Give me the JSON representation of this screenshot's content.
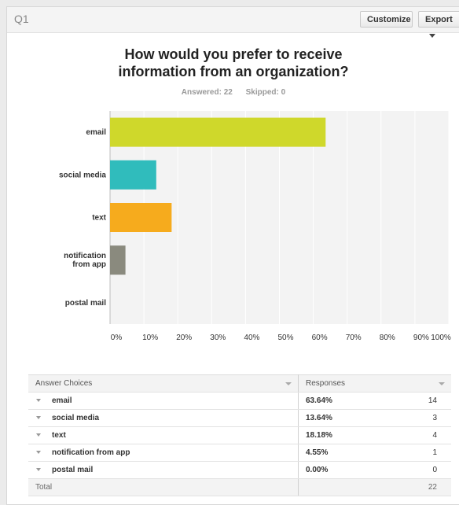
{
  "question": {
    "number": "Q1",
    "title_line1": "How would you prefer to receive",
    "title_line2": "information from an organization?",
    "answered": "Answered: 22",
    "skipped": "Skipped: 0"
  },
  "toolbar": {
    "customize_label": "Customize",
    "export_label": "Export"
  },
  "chart_data": {
    "type": "bar",
    "orientation": "horizontal",
    "categories": [
      "email",
      "social media",
      "text",
      "notification from app",
      "postal mail"
    ],
    "category_labels": [
      [
        "email"
      ],
      [
        "social media"
      ],
      [
        "text"
      ],
      [
        "notification",
        "from app"
      ],
      [
        "postal mail"
      ]
    ],
    "values": [
      63.64,
      13.64,
      18.18,
      4.55,
      0.0
    ],
    "colors": [
      "#cfd82b",
      "#30bcbc",
      "#f6ab1d",
      "#8a8a7e",
      "#6aa9d8"
    ],
    "xlim": [
      0,
      100
    ],
    "ticks": [
      "0%",
      "10%",
      "20%",
      "30%",
      "40%",
      "50%",
      "60%",
      "70%",
      "80%",
      "90%",
      "100%"
    ],
    "grid": true
  },
  "table": {
    "headers": {
      "choices": "Answer Choices",
      "responses": "Responses"
    },
    "rows": [
      {
        "label": "email",
        "pct": "63.64%",
        "count": "14"
      },
      {
        "label": "social media",
        "pct": "13.64%",
        "count": "3"
      },
      {
        "label": "text",
        "pct": "18.18%",
        "count": "4"
      },
      {
        "label": "notification from app",
        "pct": "4.55%",
        "count": "1"
      },
      {
        "label": "postal mail",
        "pct": "0.00%",
        "count": "0"
      }
    ],
    "total_label": "Total",
    "total_value": "22"
  }
}
